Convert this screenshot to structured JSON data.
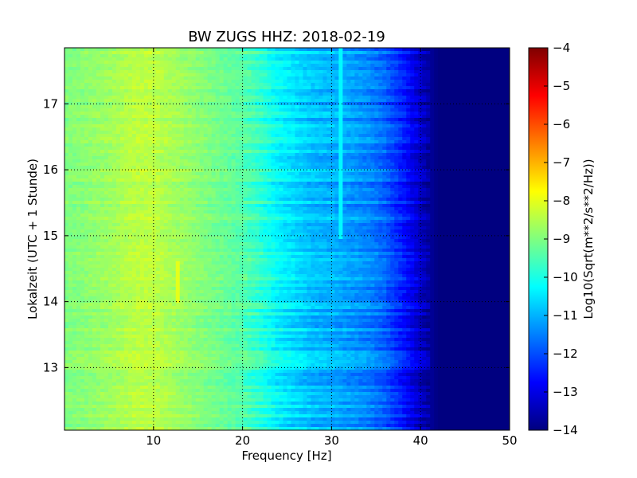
{
  "chart_data": {
    "type": "heatmap",
    "title": "BW ZUGS HHZ: 2018-02-19",
    "xlabel": "Frequency [Hz]",
    "ylabel": "Lokalzeit (UTC + 1 Stunde)",
    "xlim": [
      0,
      50
    ],
    "ylim": [
      17.85,
      12.05
    ],
    "y_inverted": true,
    "x_ticks": [
      10,
      20,
      30,
      40,
      50
    ],
    "y_ticks": [
      13,
      14,
      15,
      16,
      17
    ],
    "grid": true,
    "colormap": "jet",
    "colorbar": {
      "label": "Log10(Sqrt(m**2/s**2/Hz))",
      "range": [
        -14,
        -4
      ],
      "ticks": [
        -4,
        -5,
        -6,
        -7,
        -8,
        -9,
        -10,
        -11,
        -12,
        -13,
        -14
      ]
    },
    "spectrum_profile": {
      "frequency_hz": [
        0,
        2,
        5,
        8,
        10,
        12,
        15,
        18,
        20,
        22,
        24,
        26,
        28,
        30,
        32,
        34,
        36,
        38,
        40,
        41,
        42,
        50
      ],
      "log10_amplitude": [
        -9.0,
        -8.9,
        -8.7,
        -8.4,
        -8.4,
        -8.6,
        -8.9,
        -9.2,
        -9.4,
        -9.8,
        -10.3,
        -10.6,
        -10.9,
        -11.0,
        -11.2,
        -11.4,
        -11.8,
        -12.5,
        -13.3,
        -13.7,
        -14.0,
        -14.0
      ]
    },
    "features": [
      {
        "frequency_hz": 12.7,
        "time_range": [
          14.0,
          14.6
        ],
        "log10_amplitude": -8.0
      },
      {
        "frequency_hz": 31.0,
        "time_range": [
          14.95,
          17.85
        ],
        "log10_amplitude": -10.3
      }
    ]
  }
}
